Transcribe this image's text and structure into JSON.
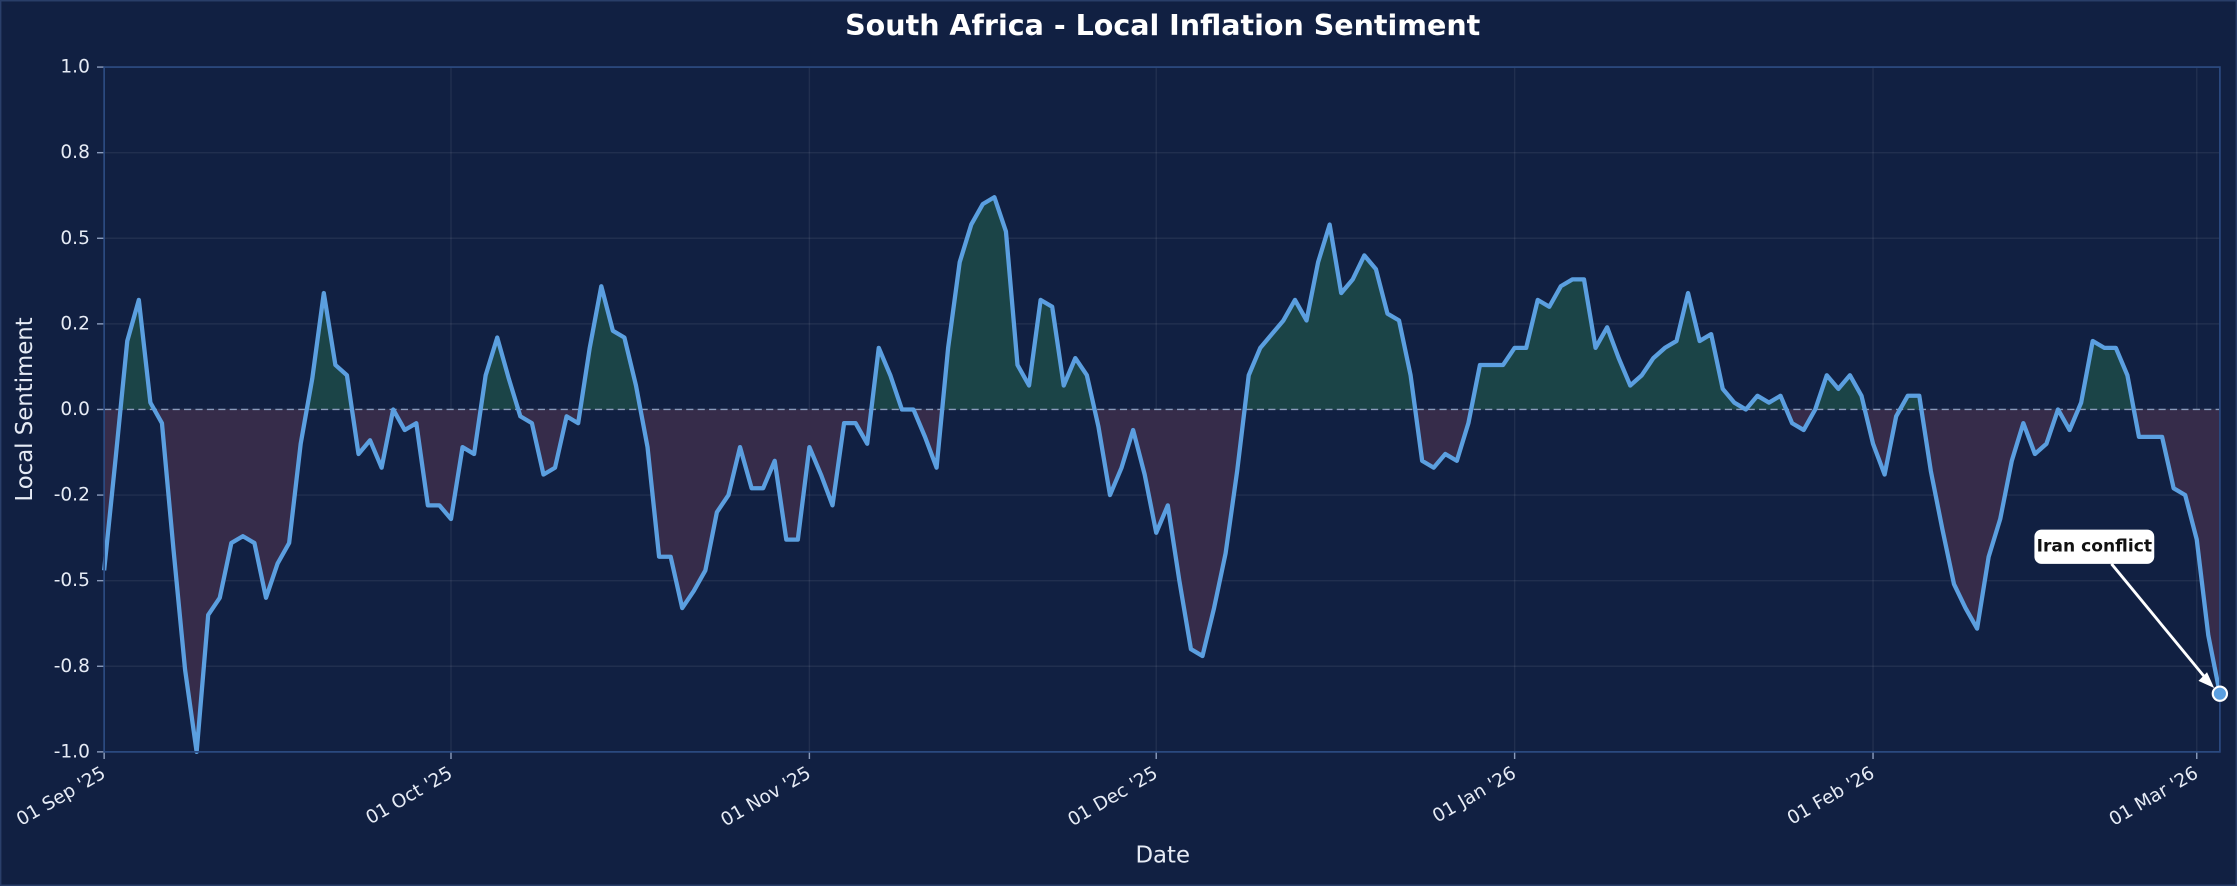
{
  "chart_data": {
    "type": "line",
    "title": "South Africa - Local Inflation Sentiment",
    "x_label": "Date",
    "y_label": "Local Sentiment",
    "x": [
      "2025-09-01",
      "2025-09-02",
      "2025-09-03",
      "2025-09-04",
      "2025-09-05",
      "2025-09-06",
      "2025-09-07",
      "2025-09-08",
      "2025-09-09",
      "2025-09-10",
      "2025-09-11",
      "2025-09-12",
      "2025-09-13",
      "2025-09-14",
      "2025-09-15",
      "2025-09-16",
      "2025-09-17",
      "2025-09-18",
      "2025-09-19",
      "2025-09-20",
      "2025-09-21",
      "2025-09-22",
      "2025-09-23",
      "2025-09-24",
      "2025-09-25",
      "2025-09-26",
      "2025-09-27",
      "2025-09-28",
      "2025-09-29",
      "2025-09-30",
      "2025-10-01",
      "2025-10-02",
      "2025-10-03",
      "2025-10-04",
      "2025-10-05",
      "2025-10-06",
      "2025-10-07",
      "2025-10-08",
      "2025-10-09",
      "2025-10-10",
      "2025-10-11",
      "2025-10-12",
      "2025-10-13",
      "2025-10-14",
      "2025-10-15",
      "2025-10-16",
      "2025-10-17",
      "2025-10-18",
      "2025-10-19",
      "2025-10-20",
      "2025-10-21",
      "2025-10-22",
      "2025-10-23",
      "2025-10-24",
      "2025-10-25",
      "2025-10-26",
      "2025-10-27",
      "2025-10-28",
      "2025-10-29",
      "2025-10-30",
      "2025-10-31",
      "2025-11-01",
      "2025-11-02",
      "2025-11-03",
      "2025-11-04",
      "2025-11-05",
      "2025-11-06",
      "2025-11-07",
      "2025-11-08",
      "2025-11-09",
      "2025-11-10",
      "2025-11-11",
      "2025-11-12",
      "2025-11-13",
      "2025-11-14",
      "2025-11-15",
      "2025-11-16",
      "2025-11-17",
      "2025-11-18",
      "2025-11-19",
      "2025-11-20",
      "2025-11-21",
      "2025-11-22",
      "2025-11-23",
      "2025-11-24",
      "2025-11-25",
      "2025-11-26",
      "2025-11-27",
      "2025-11-28",
      "2025-11-29",
      "2025-11-30",
      "2025-12-01",
      "2025-12-02",
      "2025-12-03",
      "2025-12-04",
      "2025-12-05",
      "2025-12-06",
      "2025-12-07",
      "2025-12-08",
      "2025-12-09",
      "2025-12-10",
      "2025-12-11",
      "2025-12-12",
      "2025-12-13",
      "2025-12-14",
      "2025-12-15",
      "2025-12-16",
      "2025-12-17",
      "2025-12-18",
      "2025-12-19",
      "2025-12-20",
      "2025-12-21",
      "2025-12-22",
      "2025-12-23",
      "2025-12-24",
      "2025-12-25",
      "2025-12-26",
      "2025-12-27",
      "2025-12-28",
      "2025-12-29",
      "2025-12-30",
      "2025-12-31",
      "2026-01-01",
      "2026-01-02",
      "2026-01-03",
      "2026-01-04",
      "2026-01-05",
      "2026-01-06",
      "2026-01-07",
      "2026-01-08",
      "2026-01-09",
      "2026-01-10",
      "2026-01-11",
      "2026-01-12",
      "2026-01-13",
      "2026-01-14",
      "2026-01-15",
      "2026-01-16",
      "2026-01-17",
      "2026-01-18",
      "2026-01-19",
      "2026-01-20",
      "2026-01-21",
      "2026-01-22",
      "2026-01-23",
      "2026-01-24",
      "2026-01-25",
      "2026-01-26",
      "2026-01-27",
      "2026-01-28",
      "2026-01-29",
      "2026-01-30",
      "2026-01-31",
      "2026-02-01",
      "2026-02-02",
      "2026-02-03",
      "2026-02-04",
      "2026-02-05",
      "2026-02-06",
      "2026-02-07",
      "2026-02-08",
      "2026-02-09",
      "2026-02-10",
      "2026-02-11",
      "2026-02-12",
      "2026-02-13",
      "2026-02-14",
      "2026-02-15",
      "2026-02-16",
      "2026-02-17",
      "2026-02-18",
      "2026-02-19",
      "2026-02-20",
      "2026-02-21",
      "2026-02-22",
      "2026-02-23",
      "2026-02-24",
      "2026-02-25",
      "2026-02-26",
      "2026-02-27",
      "2026-02-28",
      "2026-03-01",
      "2026-03-02",
      "2026-03-03"
    ],
    "series": [
      {
        "name": "Local Sentiment",
        "color": "#5b9fe0",
        "values": [
          -0.47,
          -0.14,
          0.2,
          0.32,
          0.02,
          -0.04,
          -0.41,
          -0.76,
          -1.0,
          -0.6,
          -0.55,
          -0.39,
          -0.37,
          -0.39,
          -0.55,
          -0.45,
          -0.39,
          -0.1,
          0.09,
          0.34,
          0.13,
          0.1,
          -0.13,
          -0.09,
          -0.17,
          0.0,
          -0.06,
          -0.04,
          -0.28,
          -0.28,
          -0.32,
          -0.11,
          -0.13,
          0.1,
          0.21,
          0.09,
          -0.02,
          -0.04,
          -0.19,
          -0.17,
          -0.02,
          -0.04,
          0.18,
          0.36,
          0.23,
          0.21,
          0.07,
          -0.11,
          -0.43,
          -0.43,
          -0.58,
          -0.53,
          -0.47,
          -0.3,
          -0.25,
          -0.11,
          -0.23,
          -0.23,
          -0.15,
          -0.38,
          -0.38,
          -0.11,
          -0.19,
          -0.28,
          -0.04,
          -0.04,
          -0.1,
          0.18,
          0.1,
          0.0,
          0.0,
          -0.08,
          -0.17,
          0.18,
          0.43,
          0.54,
          0.6,
          0.62,
          0.52,
          0.13,
          0.07,
          0.32,
          0.3,
          0.07,
          0.15,
          0.1,
          -0.05,
          -0.25,
          -0.17,
          -0.06,
          -0.19,
          -0.36,
          -0.28,
          -0.5,
          -0.7,
          -0.72,
          -0.58,
          -0.42,
          -0.18,
          0.1,
          0.18,
          0.22,
          0.26,
          0.32,
          0.26,
          0.43,
          0.54,
          0.34,
          0.38,
          0.45,
          0.41,
          0.28,
          0.26,
          0.1,
          -0.15,
          -0.17,
          -0.13,
          -0.15,
          -0.04,
          0.13,
          0.13,
          0.13,
          0.18,
          0.18,
          0.32,
          0.3,
          0.36,
          0.38,
          0.38,
          0.18,
          0.24,
          0.15,
          0.07,
          0.1,
          0.15,
          0.18,
          0.2,
          0.34,
          0.2,
          0.22,
          0.06,
          0.02,
          0.0,
          0.04,
          0.02,
          0.04,
          -0.04,
          -0.06,
          0.0,
          0.1,
          0.06,
          0.1,
          0.04,
          -0.1,
          -0.19,
          -0.02,
          0.04,
          0.04,
          -0.18,
          -0.35,
          -0.51,
          -0.58,
          -0.64,
          -0.43,
          -0.32,
          -0.15,
          -0.04,
          -0.13,
          -0.1,
          0.0,
          -0.06,
          0.02,
          0.2,
          0.18,
          0.18,
          0.1,
          -0.08,
          -0.08,
          -0.08,
          -0.23,
          -0.25,
          -0.38,
          -0.66,
          -0.83
        ]
      }
    ],
    "positive_fill": "#1b4447",
    "negative_fill": "#362c4a",
    "xlim": [
      "2025-09-01",
      "2026-03-03"
    ],
    "xticks": [
      {
        "value": "2025-09-01",
        "label": "01 Sep '25"
      },
      {
        "value": "2025-10-01",
        "label": "01 Oct '25"
      },
      {
        "value": "2025-11-01",
        "label": "01 Nov '25"
      },
      {
        "value": "2025-12-01",
        "label": "01 Dec '25"
      },
      {
        "value": "2026-01-01",
        "label": "01 Jan '26"
      },
      {
        "value": "2026-02-01",
        "label": "01 Feb '26"
      },
      {
        "value": "2026-03-01",
        "label": "01 Mar '26"
      }
    ],
    "ylim": [
      -1.0,
      1.0
    ],
    "yticks": [
      {
        "value": -1.0,
        "label": "-1.0"
      },
      {
        "value": -0.75,
        "label": "-0.8"
      },
      -0.5,
      {
        "value": -0.25,
        "label": "-0.2"
      },
      {
        "value": 0,
        "label": "0.0"
      },
      {
        "value": 0.25,
        "label": "0.2"
      },
      0.5,
      {
        "value": 0.75,
        "label": "0.8"
      },
      {
        "value": 1.0,
        "label": "1.0"
      }
    ],
    "grid": true,
    "annotation": {
      "text": "Iran conflict",
      "x": "2026-03-03"
    }
  }
}
